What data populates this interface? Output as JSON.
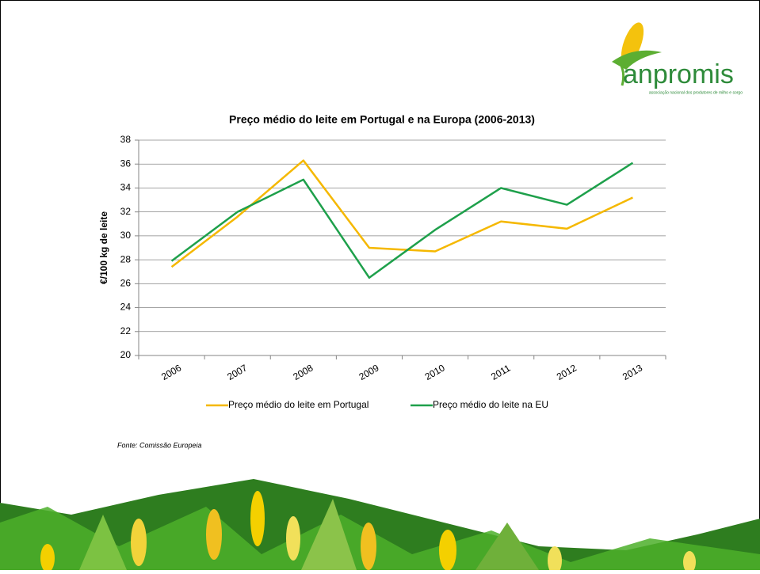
{
  "logo": {
    "name": "anpromis",
    "tagline": "associação nacional dos produtores de milho e sorgo"
  },
  "source": "Fonte: Comissão Europeia",
  "chart_data": {
    "type": "line",
    "title": "Preço médio do leite em Portugal e na Europa (2006-2013)",
    "y_label": "€/100 kg de leite",
    "categories": [
      "2006",
      "2007",
      "2008",
      "2009",
      "2010",
      "2011",
      "2012",
      "2013"
    ],
    "series": [
      {
        "name": "Preço médio do leite em Portugal",
        "color": "#f5b800",
        "values": [
          27.4,
          31.6,
          36.3,
          29.0,
          28.7,
          31.2,
          30.6,
          33.2
        ]
      },
      {
        "name": "Preço médio do leite na EU",
        "color": "#1ea04b",
        "values": [
          27.9,
          32.0,
          34.7,
          26.5,
          30.5,
          34.0,
          32.6,
          36.1
        ]
      }
    ],
    "ylim": [
      20,
      38
    ],
    "yticks": [
      20,
      22,
      24,
      26,
      28,
      30,
      32,
      34,
      36,
      38
    ],
    "grid": true,
    "legend": "bottom"
  }
}
